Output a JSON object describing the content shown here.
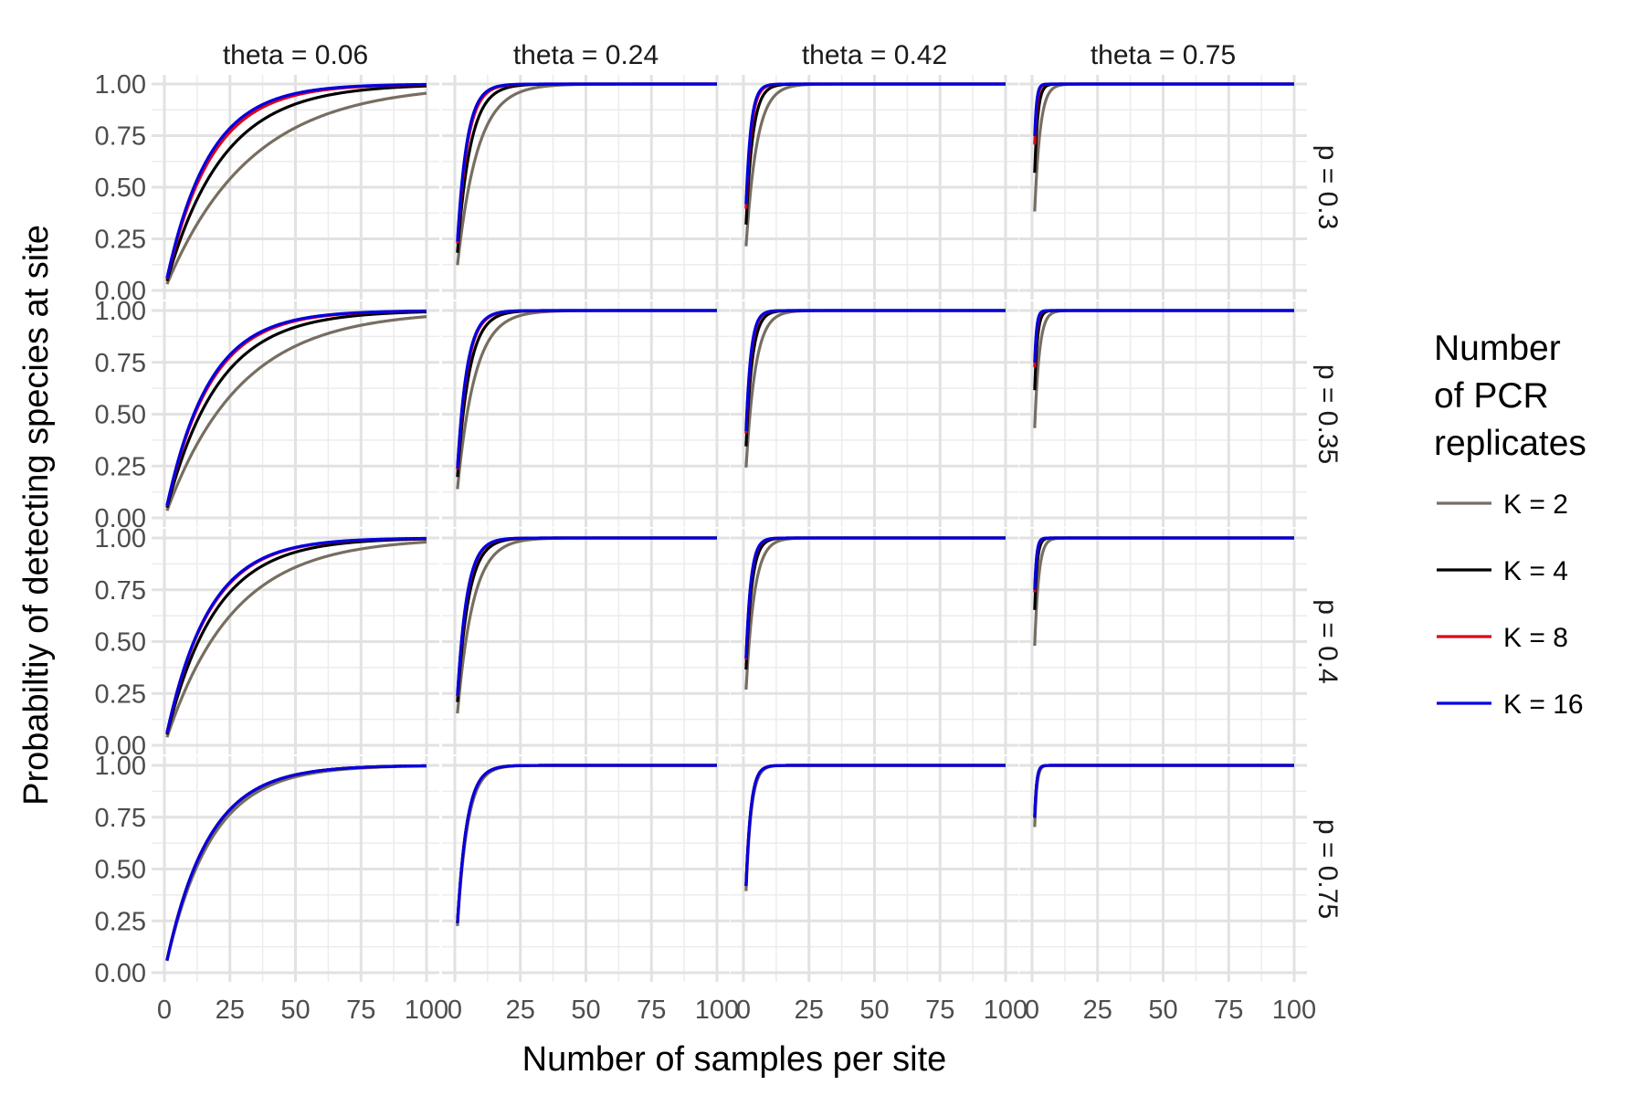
{
  "chart_data": {
    "type": "line",
    "title": "",
    "xlabel": "Number of samples per site",
    "ylabel": "Probabiltiy of detecting species at site",
    "xlim": [
      0,
      100
    ],
    "ylim": [
      0,
      1
    ],
    "x_ticks": [
      0,
      25,
      50,
      75,
      100
    ],
    "x_tick_labels": [
      "0",
      "25",
      "50",
      "75",
      "100"
    ],
    "y_ticks": [
      0,
      0.25,
      0.5,
      0.75,
      1
    ],
    "y_tick_labels": [
      "0.00",
      "0.25",
      "0.50",
      "0.75",
      "1.00"
    ],
    "grid": true,
    "facet_columns": [
      {
        "label": "theta = 0.06",
        "theta": 0.06
      },
      {
        "label": "theta = 0.24",
        "theta": 0.24
      },
      {
        "label": "theta = 0.42",
        "theta": 0.42
      },
      {
        "label": "theta = 0.75",
        "theta": 0.75
      }
    ],
    "facet_rows": [
      {
        "label": "p = 0.3",
        "p": 0.3
      },
      {
        "label": "p = 0.35",
        "p": 0.35
      },
      {
        "label": "p = 0.4",
        "p": 0.4
      },
      {
        "label": "p = 0.75",
        "p": 0.75
      }
    ],
    "legend": {
      "title_lines": [
        "Number",
        "of PCR",
        "replicates"
      ],
      "placement": "right"
    },
    "series": [
      {
        "name": "K = 2",
        "K": 2,
        "color": "#776d61"
      },
      {
        "name": "K = 4",
        "K": 4,
        "color": "#000000"
      },
      {
        "name": "K = 8",
        "K": 8,
        "color": "#e0001b"
      },
      {
        "name": "K = 16",
        "K": 16,
        "color": "#0000e0"
      }
    ],
    "x_range_plotted": [
      1,
      100
    ],
    "curve_formula": "y = 1 - (1 - theta * (1 - (1 - p)^K))^x"
  }
}
